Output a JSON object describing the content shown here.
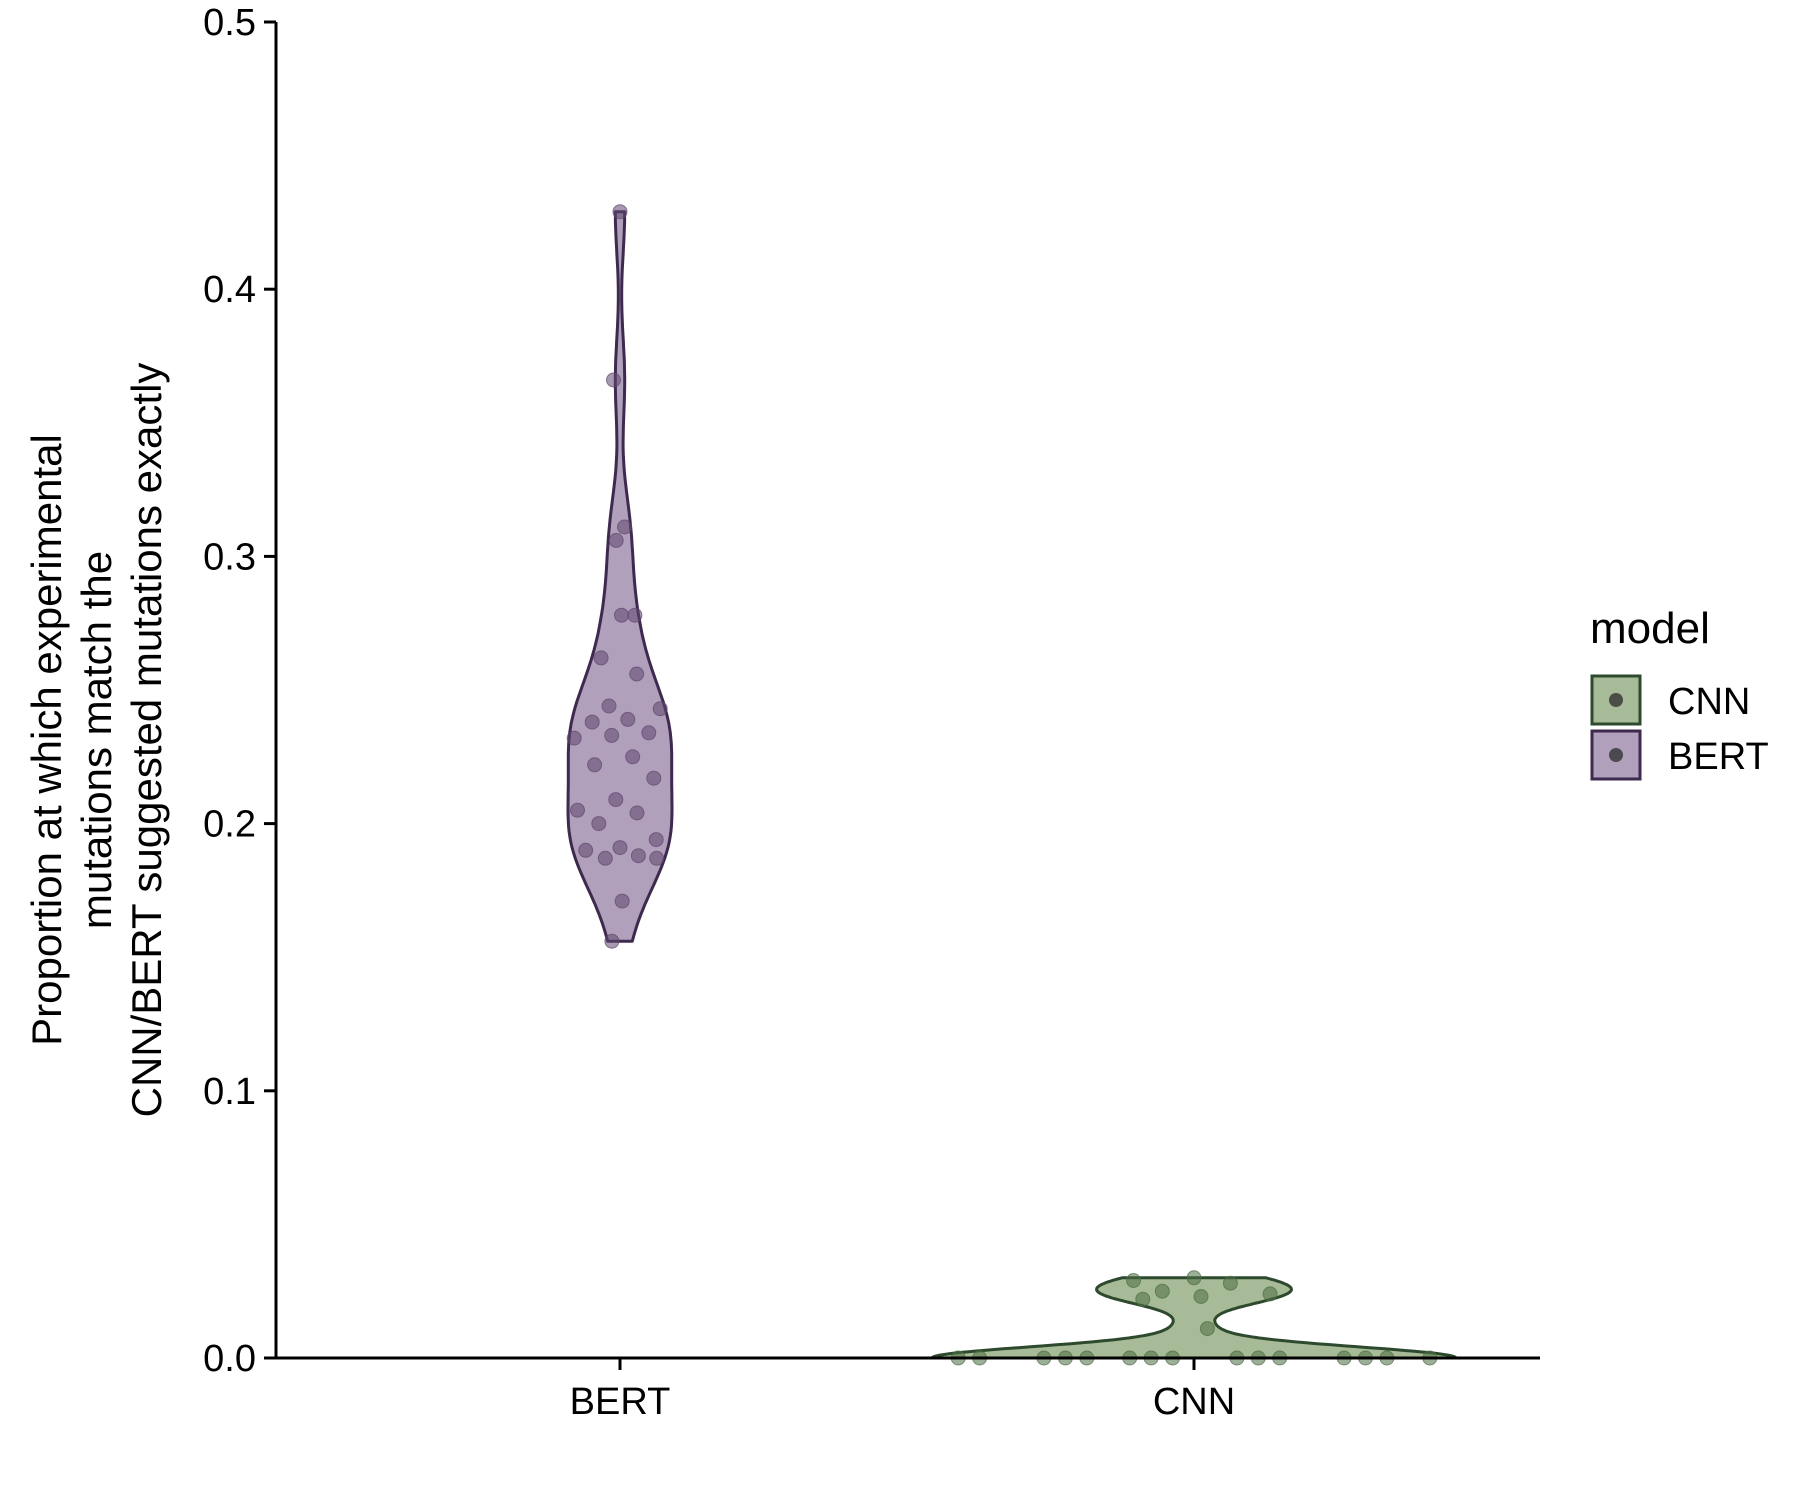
{
  "chart_data": {
    "type": "violin",
    "categories": [
      "BERT",
      "CNN"
    ],
    "ylabel_lines": [
      "Proportion at which experimental",
      "mutations match the",
      "CNN/BERT suggested mutations exactly"
    ],
    "ylim": [
      0,
      0.5
    ],
    "yticks": [
      "0.0",
      "0.1",
      "0.2",
      "0.3",
      "0.4",
      "0.5"
    ],
    "grid": false,
    "legend": {
      "title": "model",
      "position": "right",
      "entries": [
        {
          "label": "CNN",
          "fill": "#a8bb98",
          "stroke": "#2e4a2e"
        },
        {
          "label": "BERT",
          "fill": "#b1a0bb",
          "stroke": "#3e2a4e"
        }
      ]
    },
    "series": [
      {
        "name": "BERT",
        "fill": "#b1a0bb",
        "stroke": "#3e2a4e",
        "point_color": "#5f4770",
        "points": [
          0.429,
          0.366,
          0.311,
          0.306,
          0.278,
          0.278,
          0.262,
          0.256,
          0.244,
          0.243,
          0.239,
          0.238,
          0.234,
          0.233,
          0.232,
          0.225,
          0.222,
          0.217,
          0.209,
          0.205,
          0.204,
          0.2,
          0.194,
          0.191,
          0.19,
          0.188,
          0.187,
          0.187,
          0.171,
          0.156
        ]
      },
      {
        "name": "CNN",
        "fill": "#a8bb98",
        "stroke": "#2e4a2e",
        "point_color": "#4d6e45",
        "points": [
          0.03,
          0.029,
          0.028,
          0.025,
          0.024,
          0.023,
          0.022,
          0.011,
          0,
          0,
          0,
          0,
          0,
          0,
          0,
          0,
          0,
          0,
          0,
          0,
          0,
          0,
          0
        ]
      }
    ]
  }
}
